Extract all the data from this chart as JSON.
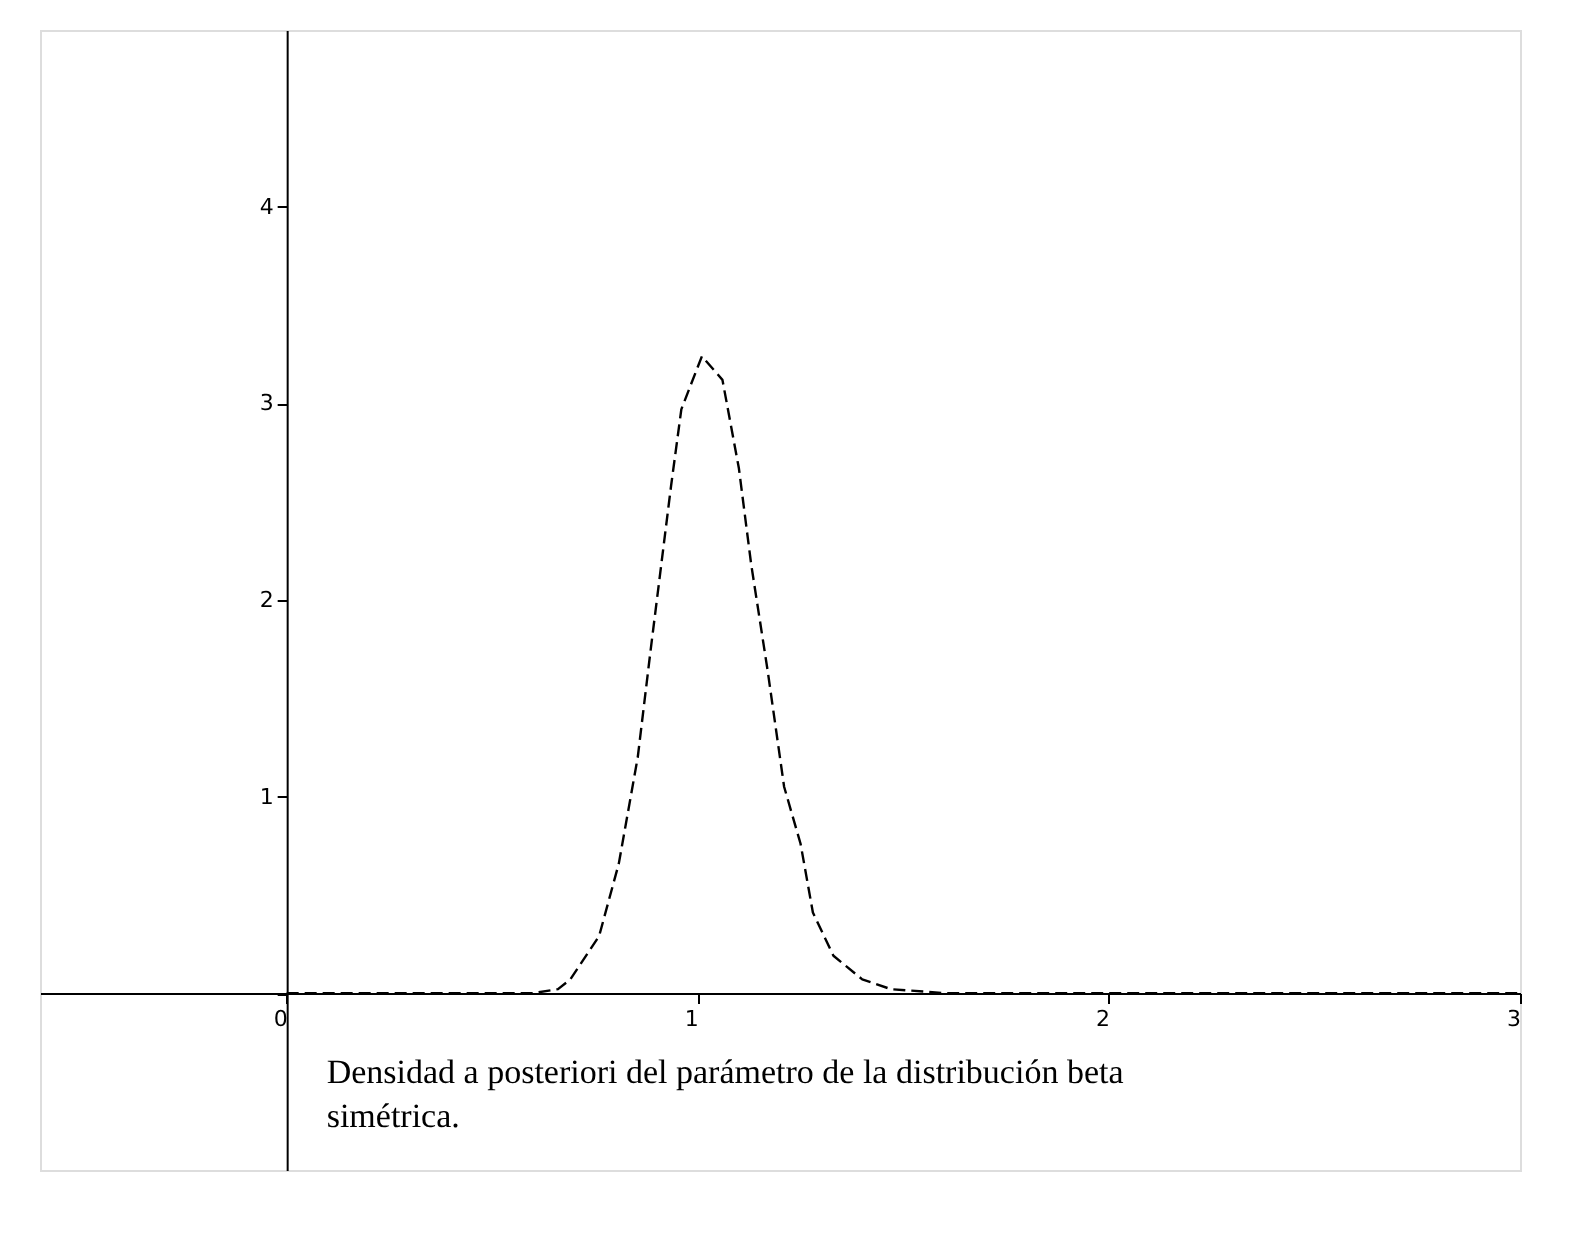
{
  "chart_data": {
    "type": "line",
    "x": [
      0.0,
      0.6,
      0.66,
      0.69,
      0.76,
      0.808,
      0.854,
      0.885,
      0.935,
      0.96,
      1.01,
      1.06,
      1.1,
      1.13,
      1.17,
      1.21,
      1.25,
      1.28,
      1.33,
      1.4,
      1.47,
      1.6,
      3.0
    ],
    "series": [
      {
        "color": "#000000",
        "line_style": "dashed",
        "values": [
          0,
          0,
          0.02,
          0.07,
          0.29,
          0.66,
          1.2,
          1.74,
          2.58,
          2.97,
          3.24,
          3.12,
          2.67,
          2.18,
          1.64,
          1.05,
          0.76,
          0.41,
          0.19,
          0.07,
          0.02,
          0,
          0
        ]
      }
    ],
    "xlim": [
      -0.6,
      3.0
    ],
    "ylim": [
      -0.9,
      4.9
    ],
    "xticks": [
      0,
      1,
      2,
      3
    ],
    "yticks": [
      {
        "value": 0,
        "label": null
      },
      1,
      2,
      3,
      4
    ],
    "grid": false,
    "marker": "none",
    "annotations": [
      "Densidad a posteriori del parámetro de la distribución beta simétrica."
    ]
  }
}
